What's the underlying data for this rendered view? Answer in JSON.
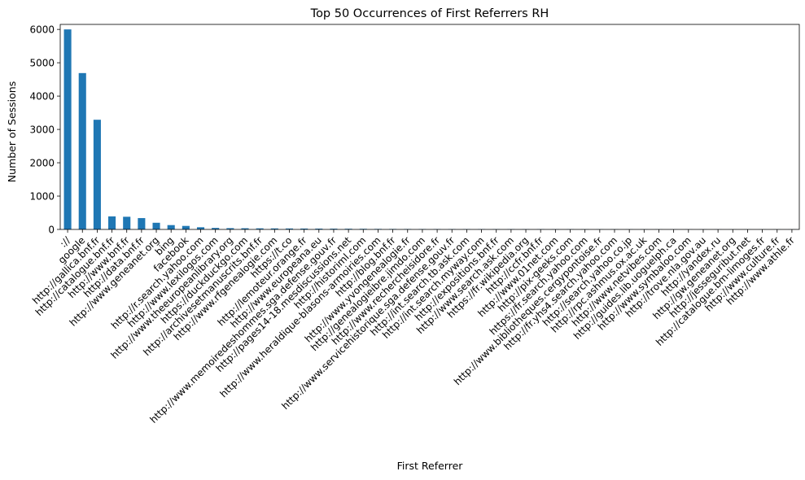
{
  "chart_data": {
    "type": "bar",
    "title": "Top 50 Occurrences of First Referrers RH",
    "xlabel": "First Referrer",
    "ylabel": "Number of Sessions",
    "ylim": [
      0,
      6150
    ],
    "yticks": [
      0,
      1000,
      2000,
      3000,
      4000,
      5000,
      6000
    ],
    "bar_color": "#1f77b4",
    "grid": false,
    "categories": [
      "://",
      "google",
      "http://gallica.bnf.fr",
      "http://catalogue.bnf.fr",
      "http://www.bnf.fr",
      "http://data.bnf.fr",
      "http://www.geneanet.org",
      "bing",
      "facebook",
      "http://r.search.yahoo.com",
      "http://www.lexilogos.com",
      "http://www.theeuropeanlibrary.org",
      "https://duckduckgo.com",
      "http://archivesetmanuscrits.bnf.fr",
      "http://www.rfgenealogie.com",
      "https://t.co",
      "http://lemoteur.orange.fr",
      "http://www.europeana.eu",
      "http://www.memoiredeshommes.sga.defense.gouv.fr",
      "http://pages14-18.mesdiscussions.net",
      "http://historiml.com",
      "http://www.heraldique-blasons-armoiries.com",
      "http://blog.bnf.fr",
      "http://www.yvongenealogie.fr",
      "http://genealogieibre.jimdo.com",
      "http://www.rechercheisidore.fr",
      "http://www.servicehistorique.sga.defense.gouv.fr",
      "http://int.search.tb.ask.com",
      "http://int.search.myway.com",
      "http://expositions.bnf.fr",
      "http://www.search.ask.com",
      "https://fr.wikipedia.org",
      "http://ccfr.bnf.fr",
      "http://www.01net.com",
      "http://pix-geeks.com",
      "https://fr.search.yahoo.com",
      "http://www.bibliotheques.cergypontoise.fr",
      "http://fr.yhs4.search.yahoo.com",
      "http://search.yahoo.co.jp",
      "http://rpc.ashmus.ox.ac.uk",
      "http://www.netvibes.com",
      "http://guides.lib.uoguelph.ca",
      "http://www.symbaloo.com",
      "http://trove.nla.gov.au",
      "http://yandex.ru",
      "http://gw.geneanet.org",
      "http://jesseguribut.net",
      "http://catalogue.bm-limoges.fr",
      "http://www.culture.fr",
      "http://www.athle.fr"
    ],
    "values": [
      6000,
      4690,
      3290,
      390,
      380,
      340,
      200,
      130,
      105,
      65,
      45,
      38,
      35,
      32,
      30,
      28,
      26,
      24,
      22,
      20,
      18,
      15,
      14,
      13,
      12,
      11,
      10,
      9,
      9,
      8,
      8,
      7,
      7,
      6,
      6,
      5,
      5,
      5,
      4,
      4,
      4,
      3,
      3,
      3,
      3,
      2,
      2,
      2,
      2,
      2
    ]
  }
}
